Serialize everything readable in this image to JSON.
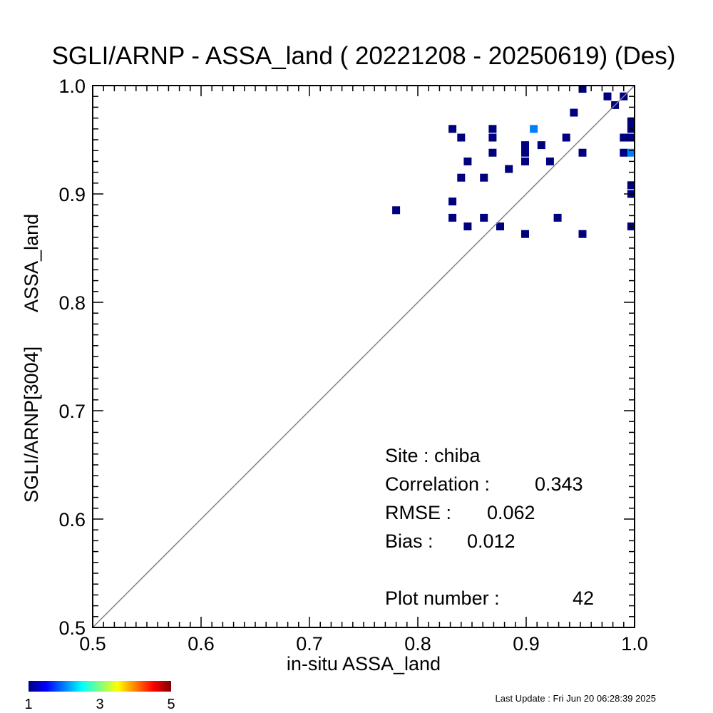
{
  "chart_data": {
    "type": "heatmap",
    "title": "SGLI/ARNP - ASSA_land ( 20221208 - 20250619) (Des)",
    "xlabel": "in-situ ASSA_land",
    "ylabel_left": "SGLI/ARNP[3004]",
    "ylabel_right": "ASSA_land",
    "xlim": [
      0.5,
      1.0
    ],
    "ylim": [
      0.5,
      1.0
    ],
    "x_ticks": [
      "0.5",
      "0.6",
      "0.7",
      "0.8",
      "0.9",
      "1.0"
    ],
    "y_ticks": [
      "0.5",
      "0.6",
      "0.7",
      "0.8",
      "0.9",
      "1.0"
    ],
    "one_to_one_line": true,
    "colorbar": {
      "min": 1,
      "max": 5,
      "tick_labels": [
        "1",
        "3",
        "5"
      ]
    },
    "points": [
      {
        "x": 0.78,
        "y": 0.885,
        "count": 1
      },
      {
        "x": 0.832,
        "y": 0.96,
        "count": 1
      },
      {
        "x": 0.832,
        "y": 0.893,
        "count": 1
      },
      {
        "x": 0.832,
        "y": 0.878,
        "count": 1
      },
      {
        "x": 0.84,
        "y": 0.952,
        "count": 1
      },
      {
        "x": 0.84,
        "y": 0.915,
        "count": 1
      },
      {
        "x": 0.846,
        "y": 0.93,
        "count": 1
      },
      {
        "x": 0.846,
        "y": 0.87,
        "count": 1
      },
      {
        "x": 0.861,
        "y": 0.915,
        "count": 1
      },
      {
        "x": 0.861,
        "y": 0.878,
        "count": 1
      },
      {
        "x": 0.869,
        "y": 0.96,
        "count": 1
      },
      {
        "x": 0.869,
        "y": 0.952,
        "count": 1
      },
      {
        "x": 0.869,
        "y": 0.938,
        "count": 1
      },
      {
        "x": 0.876,
        "y": 0.87,
        "count": 1
      },
      {
        "x": 0.884,
        "y": 0.923,
        "count": 1
      },
      {
        "x": 0.899,
        "y": 0.945,
        "count": 1
      },
      {
        "x": 0.899,
        "y": 0.938,
        "count": 1
      },
      {
        "x": 0.899,
        "y": 0.93,
        "count": 1
      },
      {
        "x": 0.899,
        "y": 0.863,
        "count": 1
      },
      {
        "x": 0.907,
        "y": 0.96,
        "count": 2
      },
      {
        "x": 0.914,
        "y": 0.945,
        "count": 1
      },
      {
        "x": 0.922,
        "y": 0.93,
        "count": 1
      },
      {
        "x": 0.929,
        "y": 0.878,
        "count": 1
      },
      {
        "x": 0.937,
        "y": 0.952,
        "count": 1
      },
      {
        "x": 0.944,
        "y": 0.975,
        "count": 1
      },
      {
        "x": 0.952,
        "y": 0.997,
        "count": 1
      },
      {
        "x": 0.952,
        "y": 0.938,
        "count": 1
      },
      {
        "x": 0.952,
        "y": 0.863,
        "count": 1
      },
      {
        "x": 0.975,
        "y": 0.99,
        "count": 1
      },
      {
        "x": 0.982,
        "y": 0.982,
        "count": 1
      },
      {
        "x": 0.99,
        "y": 0.99,
        "count": 1
      },
      {
        "x": 0.99,
        "y": 0.952,
        "count": 1
      },
      {
        "x": 0.99,
        "y": 0.938,
        "count": 1
      },
      {
        "x": 0.997,
        "y": 0.967,
        "count": 1
      },
      {
        "x": 0.997,
        "y": 0.96,
        "count": 1
      },
      {
        "x": 0.997,
        "y": 0.952,
        "count": 1
      },
      {
        "x": 0.997,
        "y": 0.938,
        "count": 2
      },
      {
        "x": 0.997,
        "y": 0.908,
        "count": 1
      },
      {
        "x": 0.997,
        "y": 0.9,
        "count": 1
      },
      {
        "x": 0.997,
        "y": 0.87,
        "count": 1
      }
    ],
    "stats": {
      "site_label": "Site : chiba",
      "correlation_label": "Correlation :",
      "correlation": "0.343",
      "rmse_label": "RMSE :",
      "rmse": "0.062",
      "bias_label": "Bias :",
      "bias": "0.012",
      "plot_number_label": "Plot number :",
      "plot_number": "42"
    }
  },
  "footer": {
    "last_update": "Last Update : Fri Jun 20 06:28:39 2025"
  },
  "colors": {
    "line": "#808080",
    "count_1": "#00007f",
    "count_2": "#0080ff"
  }
}
